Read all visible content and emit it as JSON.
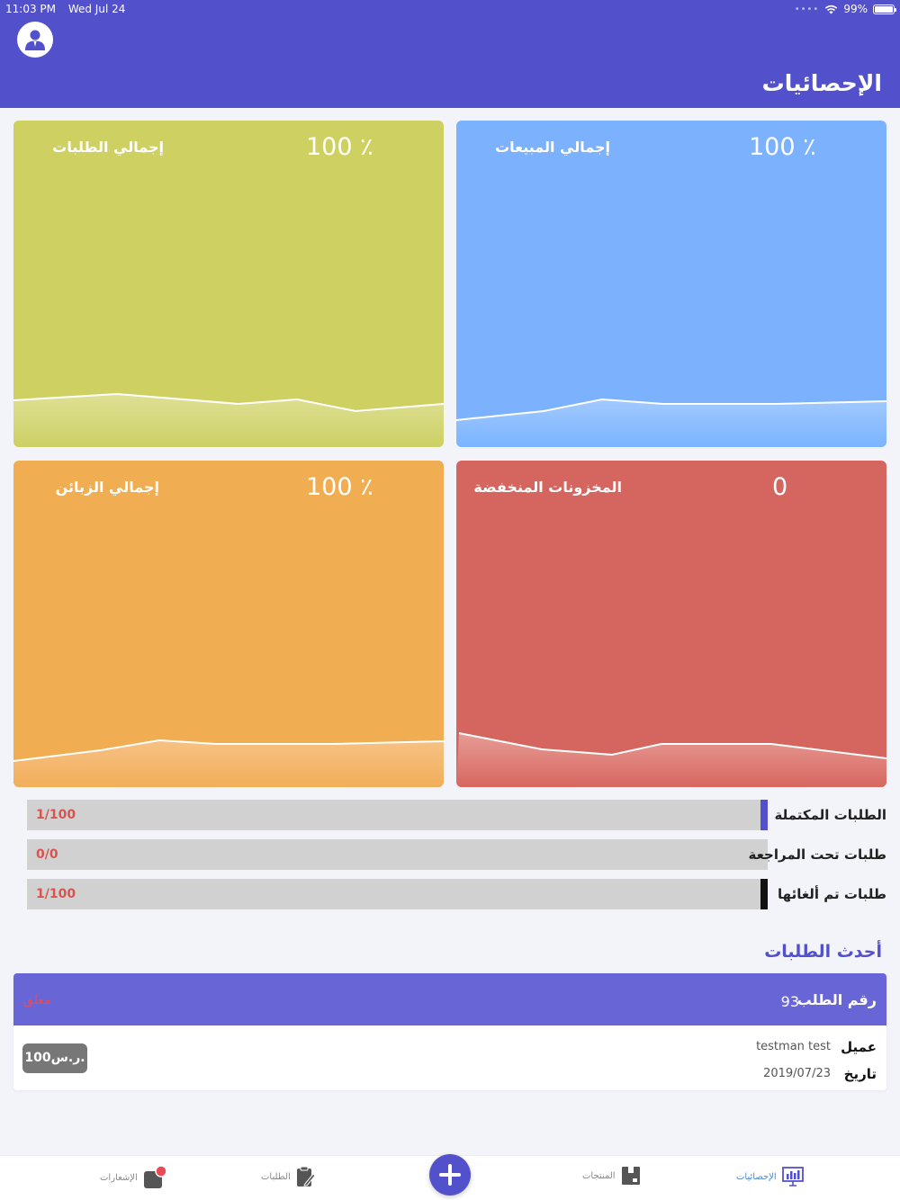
{
  "status_bar": {
    "time": "11:03 PM",
    "date": "Wed Jul 24",
    "battery": "99%"
  },
  "header": {
    "title": "الإحصائيات"
  },
  "cards": [
    {
      "label": "إجمالي الطلبات",
      "value": "100 ٪",
      "color": "#cfd062"
    },
    {
      "label": "إجمالي المبيعات",
      "value": "100 ٪",
      "color": "#7cb1fd"
    },
    {
      "label": "إجمالي الزبائن",
      "value": "100 ٪",
      "color": "#f0ad52"
    },
    {
      "label": "المخزونات المنخفضة",
      "value": "0",
      "color": "#d5665f"
    }
  ],
  "progress": [
    {
      "label": "الطلبات المكتملة",
      "text": "1/100",
      "fraction": 0.01,
      "color": "#5350cc"
    },
    {
      "label": "طلبات تحت المراجعة",
      "text": "0/0",
      "fraction": 0,
      "color": "#5350cc"
    },
    {
      "label": "طلبات تم ألغائها",
      "text": "1/100",
      "fraction": 0.01,
      "color": "#111111"
    }
  ],
  "recent": {
    "title": "أحدث الطلبات",
    "order": {
      "number_label": "رقم الطلب",
      "number": "93",
      "status": "معلق",
      "customer_label": "عميل",
      "customer": "testman test",
      "date_label": "تاريخ",
      "date": "2019/07/23",
      "price": "100ر.س."
    }
  },
  "tabs": [
    {
      "label": "الإحصائيات",
      "icon": "chart-icon",
      "active": true
    },
    {
      "label": "المنتجات",
      "icon": "product-icon",
      "active": false
    },
    {
      "label": "الطلبات",
      "icon": "clipboard-icon",
      "active": false
    },
    {
      "label": "الإشعارات",
      "icon": "notification-icon",
      "active": false
    }
  ]
}
